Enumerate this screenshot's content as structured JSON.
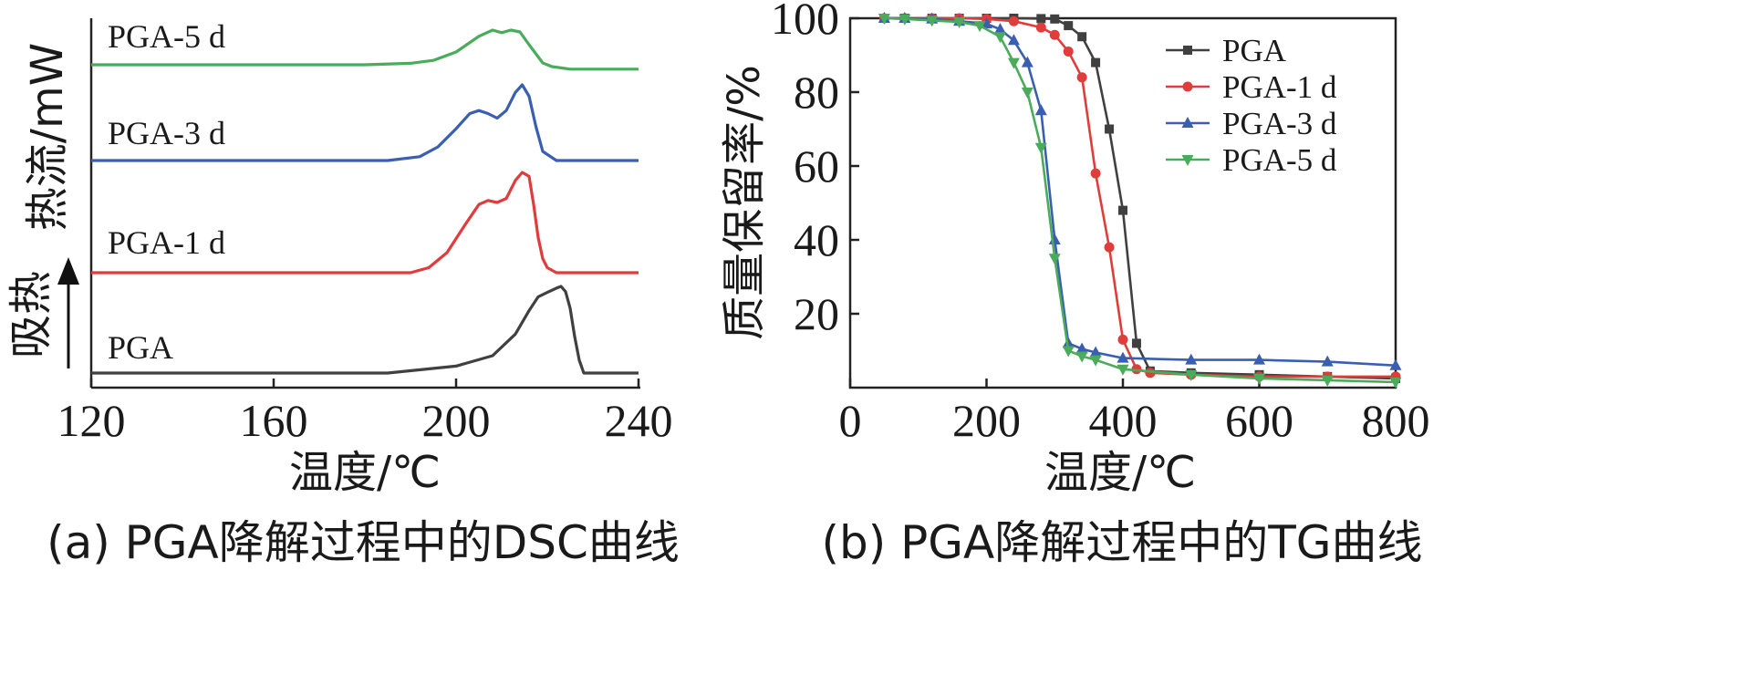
{
  "chart_data": [
    {
      "type": "line",
      "caption": "(a) PGA降解过程中的DSC曲线",
      "xlabel": "温度/℃",
      "ylabel": "热流/mW",
      "y_annotation": "吸热",
      "xlim": [
        120,
        240
      ],
      "x_ticks": [
        "120",
        "160",
        "200",
        "240"
      ],
      "grid": false,
      "colors": {
        "PGA": "#404040",
        "PGA-1 d": "#e03c3c",
        "PGA-3 d": "#3a5fb0",
        "PGA-5 d": "#4aab5a"
      },
      "series": [
        {
          "name": "PGA-5 d",
          "label": "PGA-5 d",
          "x": [
            120,
            180,
            190,
            195,
            200,
            205,
            208,
            210,
            212,
            214,
            216,
            219,
            221,
            225,
            240
          ],
          "y": [
            0.0,
            0.0,
            0.04,
            0.12,
            0.35,
            0.78,
            0.95,
            0.88,
            0.95,
            0.9,
            0.55,
            0.05,
            -0.05,
            -0.12,
            -0.12
          ]
        },
        {
          "name": "PGA-3 d",
          "label": "PGA-3 d",
          "x": [
            120,
            185,
            192,
            196,
            200,
            203,
            205,
            207,
            209,
            211,
            213,
            214.5,
            216,
            217.5,
            219,
            222,
            240
          ],
          "y": [
            0.0,
            0.0,
            0.05,
            0.18,
            0.42,
            0.62,
            0.66,
            0.62,
            0.56,
            0.66,
            0.9,
            1.0,
            0.85,
            0.45,
            0.12,
            0.0,
            0.0
          ]
        },
        {
          "name": "PGA-1 d",
          "label": "PGA-1 d",
          "x": [
            120,
            190,
            194,
            198,
            202,
            205,
            207,
            209,
            211,
            213,
            214.5,
            216,
            217,
            218,
            219,
            220,
            222,
            240
          ],
          "y": [
            0.0,
            0.0,
            0.05,
            0.2,
            0.48,
            0.68,
            0.72,
            0.7,
            0.74,
            0.92,
            1.0,
            0.96,
            0.68,
            0.35,
            0.14,
            0.05,
            0.0,
            0.0
          ]
        },
        {
          "name": "PGA",
          "label": "PGA",
          "x": [
            120,
            185,
            200,
            208,
            213,
            216,
            218,
            220,
            222,
            223,
            224,
            225,
            226,
            227,
            228,
            240
          ],
          "y": [
            0.0,
            0.0,
            0.08,
            0.2,
            0.45,
            0.72,
            0.88,
            0.93,
            0.98,
            1.0,
            0.94,
            0.75,
            0.42,
            0.15,
            0.0,
            0.0
          ]
        }
      ]
    },
    {
      "type": "line",
      "caption": "(b) PGA降解过程中的TG曲线",
      "xlabel": "温度/℃",
      "ylabel": "质量保留率/%",
      "xlim": [
        0,
        800
      ],
      "ylim": [
        0,
        100
      ],
      "x_ticks": [
        "0",
        "200",
        "400",
        "600",
        "800"
      ],
      "y_ticks": [
        "20",
        "40",
        "60",
        "80",
        "100"
      ],
      "legend_position": "top-right",
      "grid": false,
      "series": [
        {
          "name": "PGA",
          "color": "#404040",
          "marker": "square",
          "x": [
            50,
            80,
            120,
            160,
            200,
            240,
            280,
            300,
            320,
            340,
            360,
            380,
            400,
            420,
            440,
            500,
            600,
            700,
            800
          ],
          "y": [
            100,
            100,
            100,
            100,
            100,
            100,
            99.9,
            99.8,
            98,
            95,
            88,
            70,
            48,
            12,
            4.5,
            4,
            3.5,
            3,
            2.5
          ]
        },
        {
          "name": "PGA-1 d",
          "color": "#e03c3c",
          "marker": "circle",
          "x": [
            50,
            80,
            120,
            160,
            200,
            240,
            280,
            300,
            320,
            340,
            360,
            380,
            400,
            420,
            440,
            500,
            600,
            700,
            800
          ],
          "y": [
            100,
            100,
            100,
            100,
            99.8,
            99.2,
            97.5,
            95.5,
            91,
            84,
            58,
            38,
            13,
            5,
            4,
            3.5,
            3,
            3,
            3
          ]
        },
        {
          "name": "PGA-3 d",
          "color": "#3a5fb0",
          "marker": "triangle-up",
          "x": [
            50,
            80,
            120,
            160,
            200,
            220,
            240,
            260,
            280,
            300,
            320,
            340,
            360,
            400,
            500,
            600,
            700,
            800
          ],
          "y": [
            100,
            100,
            99.8,
            99.2,
            98.5,
            97,
            94,
            88,
            75,
            40,
            12,
            10.5,
            9.5,
            8,
            7.5,
            7.5,
            7,
            6
          ]
        },
        {
          "name": "PGA-5 d",
          "color": "#4aab5a",
          "marker": "triangle-down",
          "x": [
            50,
            80,
            120,
            160,
            190,
            220,
            240,
            260,
            280,
            300,
            320,
            340,
            360,
            400,
            500,
            600,
            700,
            800
          ],
          "y": [
            100,
            99.8,
            99.4,
            99,
            98,
            95,
            88,
            80,
            65,
            35,
            10,
            8.5,
            7.5,
            5,
            3.5,
            2.5,
            2,
            1.5
          ]
        }
      ]
    }
  ]
}
